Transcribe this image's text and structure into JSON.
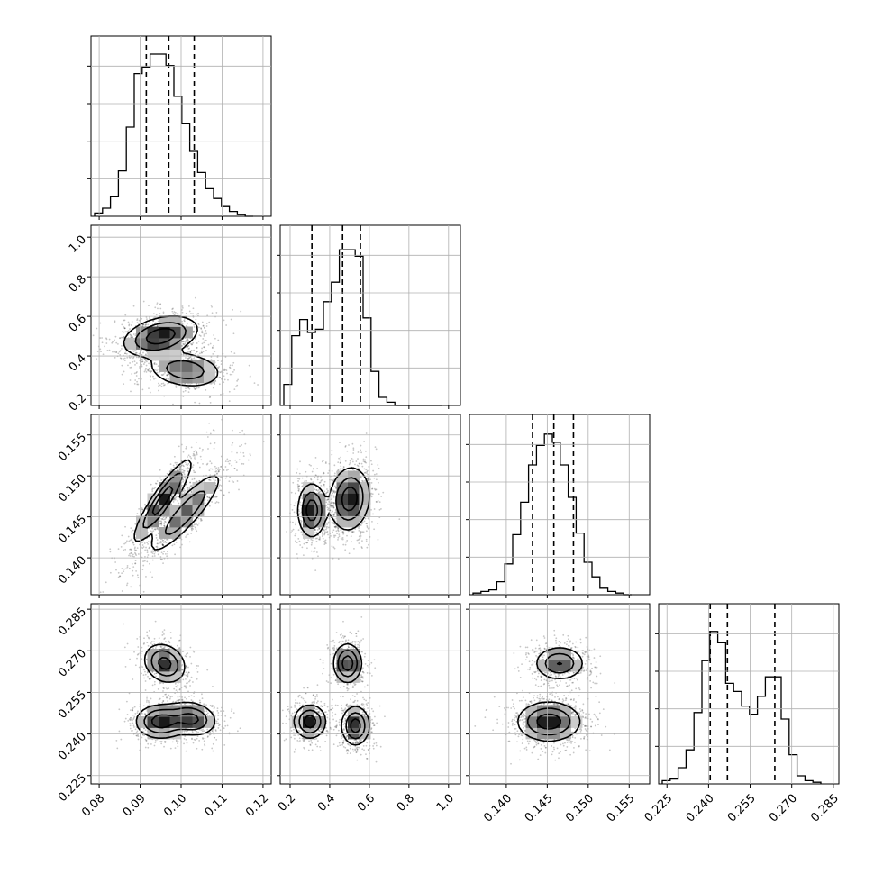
{
  "chart_data": {
    "type": "corner",
    "params": [
      {
        "range": [
          0.078,
          0.122
        ],
        "ticks": [
          0.08,
          0.09,
          0.1,
          0.11,
          0.12
        ],
        "tick_labels": [
          "0.08",
          "0.09",
          "0.10",
          "0.11",
          "0.12"
        ],
        "quantiles": [
          0.0915,
          0.097,
          0.1032
        ],
        "hist": [
          0.02,
          0.05,
          0.12,
          0.28,
          0.55,
          0.88,
          0.92,
          1.0,
          1.0,
          0.93,
          0.74,
          0.57,
          0.4,
          0.27,
          0.17,
          0.11,
          0.06,
          0.03,
          0.01,
          0.0
        ]
      },
      {
        "range": [
          0.15,
          1.06
        ],
        "ticks": [
          0.2,
          0.4,
          0.6,
          0.8,
          1.0
        ],
        "tick_labels": [
          "0.2",
          "0.4",
          "0.6",
          "0.8",
          "1.0"
        ],
        "quantiles": [
          0.31,
          0.465,
          0.555
        ],
        "hist": [
          0.13,
          0.43,
          0.53,
          0.45,
          0.47,
          0.64,
          0.76,
          0.96,
          0.96,
          0.92,
          0.54,
          0.21,
          0.05,
          0.02,
          0.0,
          0.0,
          0.0,
          0.0,
          0.0,
          0.0
        ]
      },
      {
        "range": [
          0.1355,
          0.1575
        ],
        "ticks": [
          0.14,
          0.145,
          0.15,
          0.155
        ],
        "tick_labels": [
          "0.140",
          "0.145",
          "0.150",
          "0.155"
        ],
        "quantiles": [
          0.1432,
          0.1458,
          0.1482
        ],
        "hist": [
          0.01,
          0.02,
          0.03,
          0.08,
          0.19,
          0.37,
          0.57,
          0.8,
          0.92,
          0.99,
          0.94,
          0.8,
          0.6,
          0.38,
          0.2,
          0.11,
          0.04,
          0.02,
          0.01,
          0.0
        ]
      },
      {
        "range": [
          0.222,
          0.287
        ],
        "ticks": [
          0.225,
          0.24,
          0.255,
          0.27,
          0.285
        ],
        "tick_labels": [
          "0.225",
          "0.240",
          "0.255",
          "0.270",
          "0.285"
        ],
        "quantiles": [
          0.2406,
          0.2468,
          0.2639
        ],
        "hist": [
          0.02,
          0.03,
          0.1,
          0.21,
          0.44,
          0.76,
          0.94,
          0.87,
          0.62,
          0.57,
          0.48,
          0.43,
          0.54,
          0.66,
          0.66,
          0.4,
          0.18,
          0.05,
          0.02,
          0.01
        ]
      }
    ],
    "pairs": [
      {
        "row": 1,
        "col": 0,
        "clusters": [
          {
            "mx": 0.095,
            "my": 0.5,
            "sx": 0.0045,
            "sy": 0.05,
            "rho": 0.35,
            "w": 0.62
          },
          {
            "mx": 0.101,
            "my": 0.33,
            "sx": 0.0045,
            "sy": 0.045,
            "rho": -0.2,
            "w": 0.38
          }
        ]
      },
      {
        "row": 2,
        "col": 0,
        "clusters": [
          {
            "mx": 0.0955,
            "my": 0.147,
            "sx": 0.0035,
            "sy": 0.0025,
            "rho": 0.9,
            "w": 0.5
          },
          {
            "mx": 0.101,
            "my": 0.1455,
            "sx": 0.0045,
            "sy": 0.0025,
            "rho": 0.88,
            "w": 0.5
          }
        ]
      },
      {
        "row": 2,
        "col": 1,
        "clusters": [
          {
            "mx": 0.5,
            "my": 0.1472,
            "sx": 0.05,
            "sy": 0.0019,
            "rho": 0.1,
            "w": 0.62
          },
          {
            "mx": 0.31,
            "my": 0.1458,
            "sx": 0.035,
            "sy": 0.0016,
            "rho": 0.0,
            "w": 0.38
          }
        ]
      },
      {
        "row": 3,
        "col": 0,
        "clusters": [
          {
            "mx": 0.096,
            "my": 0.2655,
            "sx": 0.0025,
            "sy": 0.0035,
            "rho": -0.2,
            "w": 0.32
          },
          {
            "mx": 0.095,
            "my": 0.2445,
            "sx": 0.003,
            "sy": 0.003,
            "rho": 0.0,
            "w": 0.36
          },
          {
            "mx": 0.1025,
            "my": 0.2455,
            "sx": 0.003,
            "sy": 0.003,
            "rho": -0.15,
            "w": 0.32
          }
        ]
      },
      {
        "row": 3,
        "col": 1,
        "clusters": [
          {
            "mx": 0.49,
            "my": 0.2655,
            "sx": 0.035,
            "sy": 0.0035,
            "rho": 0.0,
            "w": 0.34
          },
          {
            "mx": 0.3,
            "my": 0.2445,
            "sx": 0.04,
            "sy": 0.003,
            "rho": 0.0,
            "w": 0.33
          },
          {
            "mx": 0.53,
            "my": 0.243,
            "sx": 0.035,
            "sy": 0.0035,
            "rho": 0.0,
            "w": 0.33
          }
        ]
      },
      {
        "row": 3,
        "col": 2,
        "clusters": [
          {
            "mx": 0.1465,
            "my": 0.2655,
            "sx": 0.0015,
            "sy": 0.003,
            "rho": 0.0,
            "w": 0.34
          },
          {
            "mx": 0.1452,
            "my": 0.2445,
            "sx": 0.0019,
            "sy": 0.0035,
            "rho": 0.0,
            "w": 0.66
          }
        ]
      }
    ],
    "grid": true
  }
}
